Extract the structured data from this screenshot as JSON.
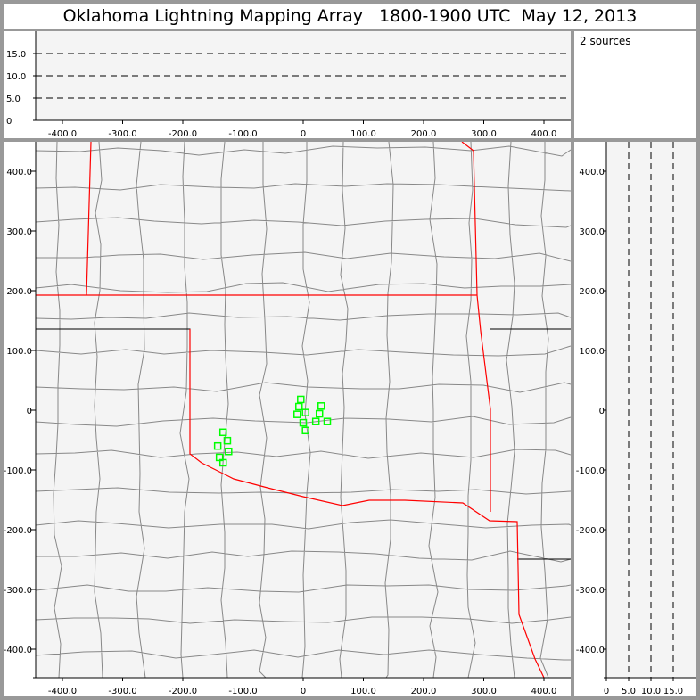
{
  "title": "Oklahoma Lightning Mapping Array   1800-1900 UTC  May 12, 2013",
  "source_count": "2 sources",
  "colors": {
    "points": "#00ff00",
    "state_border": "#ff0000",
    "county_lines": "#888888",
    "plot_bg": "#f4f4f4"
  },
  "chart_data": [
    {
      "type": "scatter",
      "panel": "altitude-vs-east-west",
      "xlim": [
        -450,
        440
      ],
      "ylim": [
        0,
        20
      ],
      "xticks": [
        "-400.0",
        "-300.0",
        "-200.0",
        "-100.0",
        "0",
        "100.0",
        "200.0",
        "300.0",
        "400.0"
      ],
      "yticks": [
        "0",
        "5.0",
        "10.0",
        "15.0"
      ],
      "grid": "dashed at 5, 10, 15",
      "points": []
    },
    {
      "type": "scatter",
      "panel": "plan-view-map",
      "xlim": [
        -450,
        440
      ],
      "ylim": [
        -445,
        445
      ],
      "xticks": [
        "-400.0",
        "-300.0",
        "-200.0",
        "-100.0",
        "0",
        "100.0",
        "200.0",
        "300.0",
        "400.0"
      ],
      "yticks": [
        "400.0",
        "300.0",
        "200.0",
        "100.0",
        "0",
        "-100.0",
        "-200.0",
        "-300.0",
        "-400.0"
      ],
      "marker": "open-square",
      "points": [
        [
          -4,
          18
        ],
        [
          -7,
          6
        ],
        [
          -10,
          -7
        ],
        [
          4,
          -4
        ],
        [
          30,
          7
        ],
        [
          27,
          -6
        ],
        [
          0,
          -21
        ],
        [
          21,
          -19
        ],
        [
          40,
          -19
        ],
        [
          4,
          -34
        ],
        [
          -133,
          -37
        ],
        [
          -126,
          -51
        ],
        [
          -142,
          -60
        ],
        [
          -124,
          -69
        ],
        [
          -139,
          -79
        ],
        [
          -133,
          -88
        ]
      ]
    },
    {
      "type": "scatter",
      "panel": "north-south-vs-altitude",
      "xlim": [
        0,
        20
      ],
      "ylim": [
        -445,
        445
      ],
      "xticks": [
        "0",
        "5.0",
        "10.0",
        "15.0"
      ],
      "yticks": [
        "400.0",
        "300.0",
        "200.0",
        "100.0",
        "0",
        "-100.0",
        "-200.0",
        "-300.0",
        "-400.0"
      ],
      "grid": "dashed at 5, 10, 15",
      "points": []
    }
  ]
}
